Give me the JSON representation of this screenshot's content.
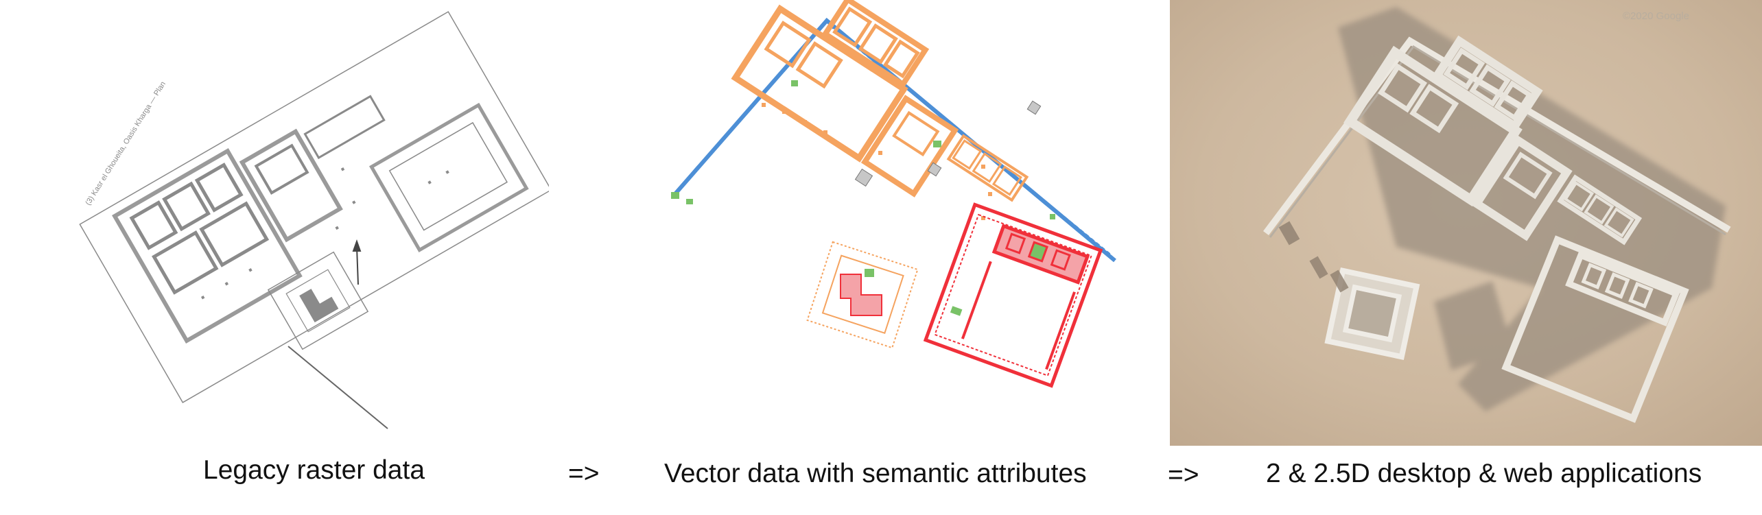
{
  "captions": {
    "raster": "Legacy raster data",
    "arrow1": "=>",
    "vector": "Vector data with semantic attributes",
    "arrow2": "=>",
    "apps": "2 & 2.5D desktop & web applications"
  },
  "raster_label": "(3) Kasr el Ghoueita, Oasis Kharga — Plan",
  "satellite_watermark": "©2020 Google",
  "colors": {
    "raster_line": "#8a8a8a",
    "wall_orange": "#f5a35f",
    "wall_red": "#f0303a",
    "wall_blue": "#4d8fd6",
    "wall_green": "#79c267",
    "fill_pink": "#f4a3a8",
    "fill_grey": "#c7c7c7",
    "sand": "#cdb89f",
    "model_white": "#e8e4dc",
    "shadow": "#9c8f80"
  },
  "icons": [
    "north-arrow-icon",
    "scale-bar-icon"
  ]
}
